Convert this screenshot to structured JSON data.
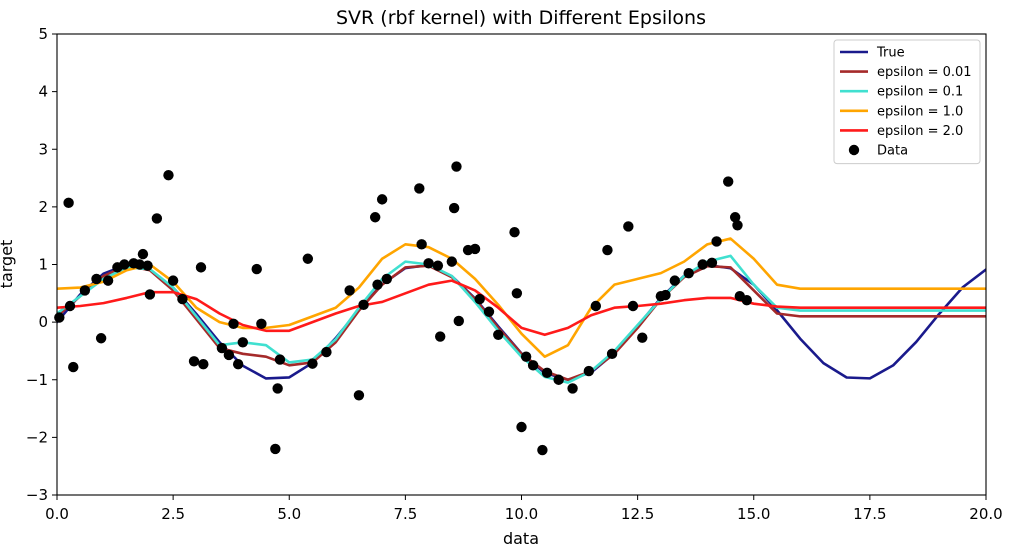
{
  "chart_data": {
    "type": "line",
    "title": "SVR (rbf kernel) with Different Epsilons",
    "xlabel": "data",
    "ylabel": "target",
    "xlim": [
      0,
      20
    ],
    "ylim": [
      -3,
      5
    ],
    "xticks": [
      0.0,
      2.5,
      5.0,
      7.5,
      10.0,
      12.5,
      15.0,
      17.5,
      20.0
    ],
    "xtick_labels": [
      "0.0",
      "2.5",
      "5.0",
      "7.5",
      "10.0",
      "12.5",
      "15.0",
      "17.5",
      "20.0"
    ],
    "yticks": [
      -3,
      -2,
      -1,
      0,
      1,
      2,
      3,
      4,
      5
    ],
    "ytick_labels": [
      "−3",
      "−2",
      "−1",
      "0",
      "1",
      "2",
      "3",
      "4",
      "5"
    ],
    "grid": false,
    "legend_position": "top-right",
    "series": [
      {
        "name": "True",
        "color": "#1a1a8c",
        "x": [
          0.0,
          0.5,
          1.0,
          1.5,
          2.0,
          2.5,
          3.0,
          3.5,
          4.0,
          4.5,
          5.0,
          5.5,
          6.0,
          6.5,
          7.0,
          7.5,
          8.0,
          8.5,
          9.0,
          9.5,
          10.0,
          10.5,
          11.0,
          11.5,
          12.0,
          12.5,
          13.0,
          13.5,
          14.0,
          14.5,
          15.0,
          15.5,
          16.0,
          16.5,
          17.0,
          17.5,
          18.0,
          18.5,
          19.0,
          19.5,
          20.0
        ],
        "y": [
          0.0,
          0.479,
          0.841,
          0.997,
          0.909,
          0.598,
          0.141,
          -0.351,
          -0.757,
          -0.978,
          -0.959,
          -0.706,
          -0.279,
          0.215,
          0.657,
          0.938,
          0.989,
          0.798,
          0.412,
          -0.075,
          -0.544,
          -0.88,
          -1.0,
          -0.875,
          -0.537,
          -0.066,
          0.42,
          0.803,
          0.991,
          0.935,
          0.65,
          0.206,
          -0.288,
          -0.712,
          -0.961,
          -0.976,
          -0.751,
          -0.342,
          0.15,
          0.605,
          0.913
        ]
      },
      {
        "name": "epsilon = 0.01",
        "color": "#a52a2a",
        "x": [
          0.0,
          0.5,
          1.0,
          1.5,
          2.0,
          2.5,
          3.0,
          3.5,
          4.0,
          4.5,
          5.0,
          5.5,
          6.0,
          6.5,
          7.0,
          7.5,
          8.0,
          8.5,
          9.0,
          9.5,
          10.0,
          10.5,
          11.0,
          11.5,
          12.0,
          12.5,
          13.0,
          13.5,
          14.0,
          14.5,
          15.0,
          15.5,
          16.0,
          17.0,
          18.0,
          19.0,
          20.0
        ],
        "y": [
          0.1,
          0.45,
          0.8,
          0.98,
          0.9,
          0.55,
          0.05,
          -0.45,
          -0.55,
          -0.6,
          -0.75,
          -0.7,
          -0.35,
          0.2,
          0.65,
          0.95,
          0.98,
          0.78,
          0.4,
          -0.1,
          -0.55,
          -0.85,
          -1.0,
          -0.85,
          -0.55,
          -0.1,
          0.4,
          0.78,
          0.97,
          0.95,
          0.55,
          0.15,
          0.1,
          0.1,
          0.1,
          0.1,
          0.1
        ]
      },
      {
        "name": "epsilon = 0.1",
        "color": "#40e0d0",
        "x": [
          0.0,
          0.5,
          1.0,
          1.5,
          2.0,
          2.5,
          3.0,
          3.5,
          4.0,
          4.5,
          5.0,
          5.5,
          6.0,
          6.5,
          7.0,
          7.5,
          8.0,
          8.5,
          9.0,
          9.5,
          10.0,
          10.5,
          11.0,
          11.5,
          12.0,
          12.5,
          13.0,
          13.5,
          14.0,
          14.5,
          15.0,
          15.5,
          16.0,
          17.0,
          18.0,
          19.0,
          20.0
        ],
        "y": [
          0.15,
          0.45,
          0.75,
          0.95,
          0.92,
          0.6,
          0.1,
          -0.4,
          -0.35,
          -0.4,
          -0.7,
          -0.65,
          -0.3,
          0.25,
          0.75,
          1.05,
          1.0,
          0.8,
          0.35,
          -0.15,
          -0.6,
          -0.95,
          -1.05,
          -0.85,
          -0.5,
          -0.05,
          0.4,
          0.8,
          1.05,
          1.15,
          0.65,
          0.25,
          0.2,
          0.2,
          0.2,
          0.2,
          0.2
        ]
      },
      {
        "name": "epsilon = 1.0",
        "color": "#ffa500",
        "x": [
          0.0,
          0.5,
          1.0,
          1.5,
          2.0,
          2.5,
          3.0,
          3.5,
          4.0,
          4.5,
          5.0,
          5.5,
          6.0,
          6.5,
          7.0,
          7.5,
          8.0,
          8.5,
          9.0,
          9.5,
          10.0,
          10.5,
          11.0,
          11.5,
          12.0,
          12.5,
          13.0,
          13.5,
          14.0,
          14.5,
          15.0,
          15.5,
          16.0,
          17.0,
          18.0,
          19.0,
          20.0
        ],
        "y": [
          0.58,
          0.6,
          0.7,
          0.9,
          1.0,
          0.7,
          0.25,
          0.0,
          -0.1,
          -0.1,
          -0.05,
          0.1,
          0.25,
          0.6,
          1.1,
          1.35,
          1.3,
          1.1,
          0.75,
          0.3,
          -0.2,
          -0.6,
          -0.4,
          0.25,
          0.65,
          0.75,
          0.85,
          1.05,
          1.35,
          1.45,
          1.1,
          0.65,
          0.58,
          0.58,
          0.58,
          0.58,
          0.58
        ]
      },
      {
        "name": "epsilon = 2.0",
        "color": "#ff1a1a",
        "x": [
          0.0,
          0.5,
          1.0,
          1.5,
          2.0,
          2.5,
          3.0,
          3.5,
          4.0,
          4.5,
          5.0,
          5.5,
          6.0,
          6.5,
          7.0,
          7.5,
          8.0,
          8.5,
          9.0,
          9.5,
          10.0,
          10.5,
          11.0,
          11.5,
          12.0,
          12.5,
          13.0,
          13.5,
          14.0,
          14.5,
          15.0,
          15.5,
          16.0,
          17.0,
          18.0,
          19.0,
          20.0
        ],
        "y": [
          0.25,
          0.28,
          0.33,
          0.42,
          0.52,
          0.52,
          0.4,
          0.15,
          -0.05,
          -0.15,
          -0.15,
          0.0,
          0.15,
          0.28,
          0.35,
          0.5,
          0.65,
          0.72,
          0.55,
          0.25,
          -0.1,
          -0.22,
          -0.1,
          0.12,
          0.25,
          0.28,
          0.32,
          0.38,
          0.42,
          0.42,
          0.32,
          0.27,
          0.25,
          0.25,
          0.25,
          0.25,
          0.25
        ]
      }
    ],
    "scatter": {
      "name": "Data",
      "color": "#000000",
      "x": [
        0.05,
        0.25,
        0.28,
        0.35,
        0.6,
        0.85,
        0.95,
        1.1,
        1.3,
        1.45,
        1.65,
        1.78,
        1.85,
        1.95,
        2.0,
        2.15,
        2.4,
        2.5,
        2.7,
        2.95,
        3.1,
        3.15,
        3.55,
        3.7,
        3.8,
        3.9,
        4.0,
        4.3,
        4.4,
        4.7,
        4.75,
        4.8,
        5.4,
        5.5,
        5.8,
        6.3,
        6.5,
        6.6,
        6.85,
        6.9,
        7.0,
        7.1,
        7.8,
        7.85,
        8.0,
        8.2,
        8.25,
        8.5,
        8.55,
        8.6,
        8.65,
        8.85,
        9.0,
        9.1,
        9.3,
        9.5,
        9.85,
        9.9,
        10.0,
        10.1,
        10.25,
        10.45,
        10.55,
        10.8,
        11.1,
        11.45,
        11.6,
        11.85,
        11.95,
        12.3,
        12.4,
        12.6,
        13.0,
        13.1,
        13.3,
        13.6,
        13.9,
        14.1,
        14.2,
        14.45,
        14.6,
        14.65,
        14.7,
        14.85
      ],
      "y": [
        0.08,
        2.07,
        0.28,
        -0.78,
        0.55,
        0.75,
        -0.28,
        0.72,
        0.95,
        1.0,
        1.02,
        1.0,
        1.18,
        0.98,
        0.48,
        1.8,
        2.55,
        0.72,
        0.4,
        -0.68,
        0.95,
        -0.73,
        -0.45,
        -0.57,
        -0.03,
        -0.73,
        -0.35,
        0.92,
        -0.03,
        -2.2,
        -1.15,
        -0.65,
        1.1,
        -0.72,
        -0.52,
        0.55,
        -1.27,
        0.3,
        1.82,
        0.65,
        2.13,
        0.75,
        2.32,
        1.35,
        1.02,
        0.98,
        -0.25,
        1.05,
        1.98,
        2.7,
        0.02,
        1.25,
        1.27,
        0.4,
        0.18,
        -0.22,
        1.56,
        0.5,
        -1.82,
        -0.6,
        -0.75,
        -2.22,
        -0.88,
        -1.0,
        -1.15,
        -0.85,
        0.28,
        1.25,
        -0.55,
        1.66,
        0.28,
        -0.27,
        0.45,
        0.47,
        0.72,
        0.85,
        1.0,
        1.03,
        1.4,
        2.44,
        1.82,
        1.68,
        0.45,
        0.38
      ]
    },
    "legend": [
      "True",
      "epsilon = 0.01",
      "epsilon = 0.1",
      "epsilon = 1.0",
      "epsilon = 2.0",
      "Data"
    ]
  }
}
